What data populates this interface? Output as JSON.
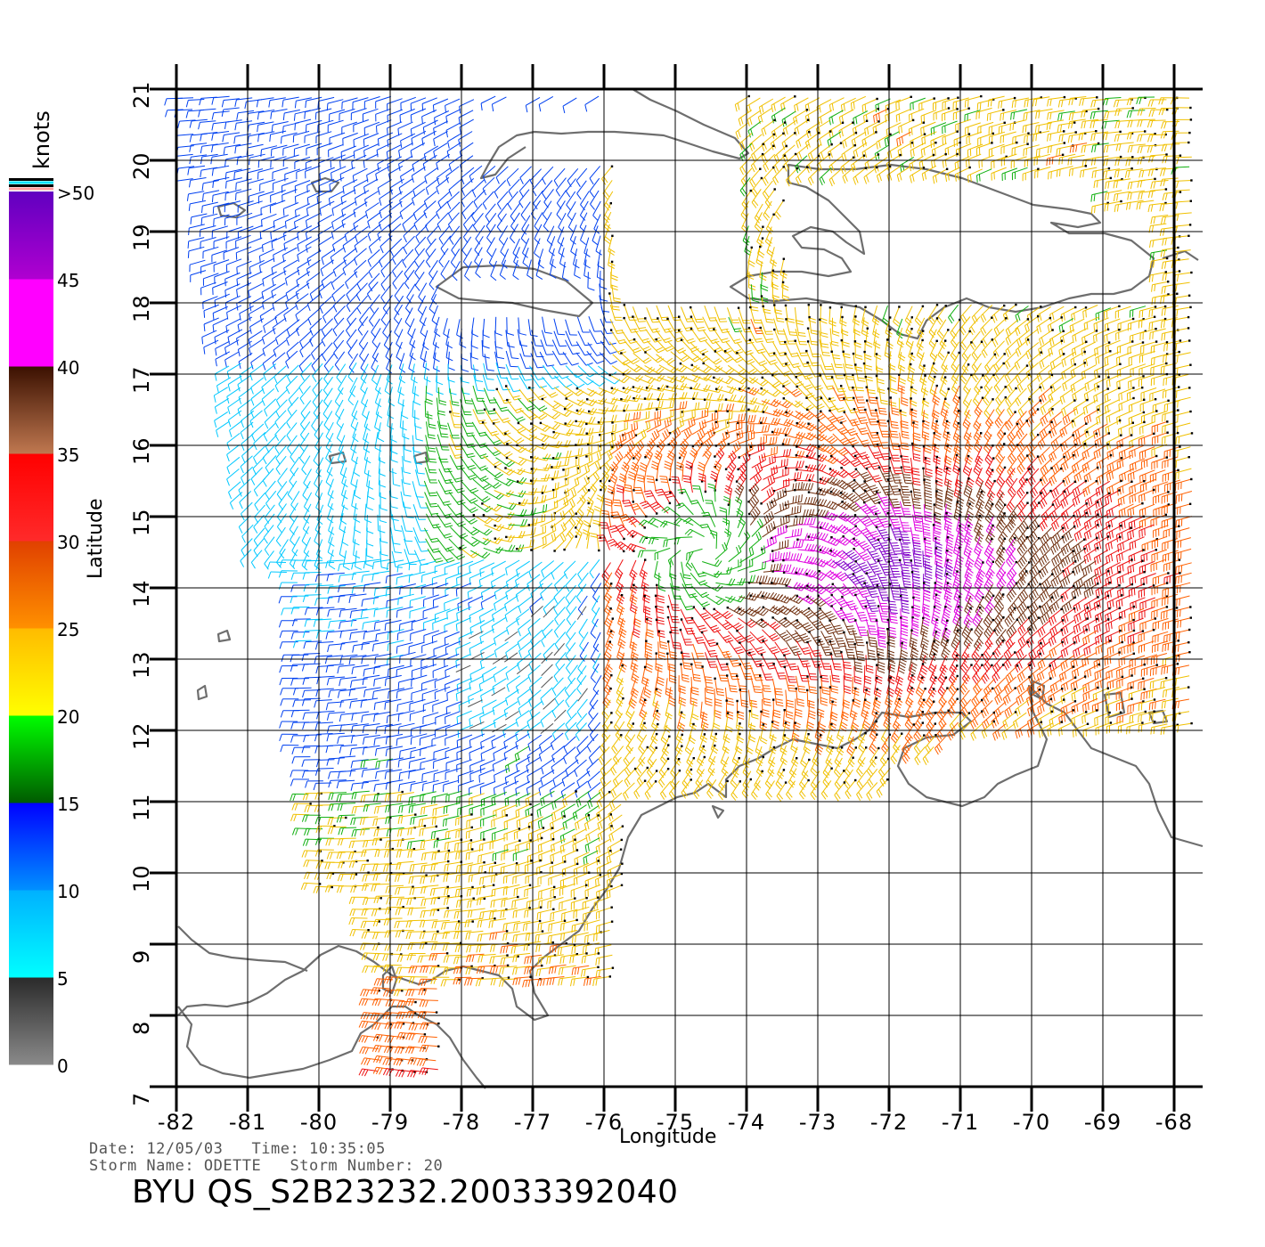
{
  "map": {
    "xlabel": "Longitude",
    "ylabel": "Latitude",
    "lon_range": [
      -82,
      -68
    ],
    "lat_range": [
      7,
      21
    ],
    "lon_ticks": [
      "-82",
      "-81",
      "-80",
      "-79",
      "-78",
      "-77",
      "-76",
      "-75",
      "-74",
      "-73",
      "-72",
      "-71",
      "-70",
      "-69",
      "-68"
    ],
    "lat_ticks": [
      "7",
      "8",
      "9",
      "10",
      "11",
      "12",
      "13",
      "14",
      "15",
      "16",
      "17",
      "18",
      "19",
      "20",
      "21"
    ],
    "land_color": "#6e6e6e",
    "grid": true
  },
  "colorbar": {
    "unit": "knots",
    "labels": [
      "0",
      "5",
      "10",
      "15",
      "20",
      "25",
      "30",
      "35",
      "40",
      "45",
      ">50"
    ],
    "colors": {
      "0-5": "#555555",
      "5-10": "#00d8ff",
      "10-15": "#0050ff",
      "15-20": "#10c010",
      "20-25": "#ffd000",
      "25-30": "#ff6000",
      "30-35": "#ff1010",
      "35-40": "#7a3a20",
      "40-45": "#ff00ff",
      ">45": "#8a00d0"
    }
  },
  "footer": {
    "date_label": "Date:",
    "date": "12/05/03",
    "time_label": "Time:",
    "time": "10:35:05",
    "storm_name_label": "Storm Name:",
    "storm_name": "ODETTE",
    "storm_number_label": "Storm Number:",
    "storm_number": "20",
    "file_id": "BYU  QS_S2B23232.20033392040"
  },
  "wind_field": {
    "center_lon": -74.6,
    "center_lat": 14.5,
    "peak_knots": 50
  }
}
